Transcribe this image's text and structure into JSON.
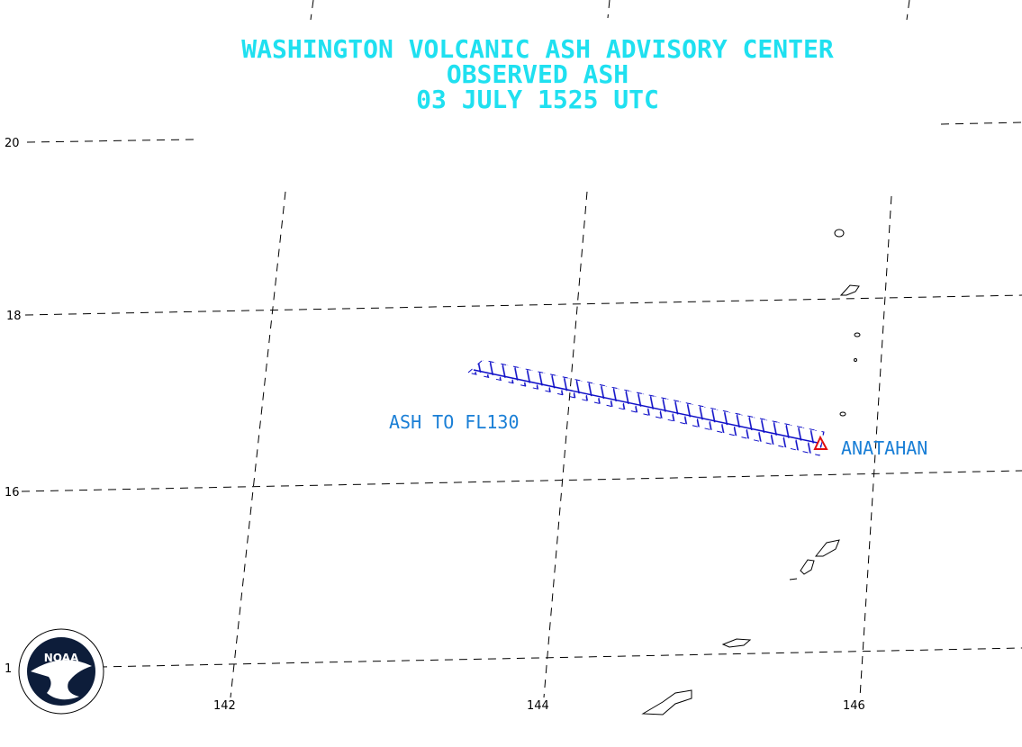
{
  "title": [
    "WASHINGTON VOLCANIC ASH ADVISORY CENTER",
    "OBSERVED ASH",
    "03 JULY 1525 UTC"
  ],
  "annotations": {
    "ash": "ASH TO FL130",
    "volcano": "ANATAHAN"
  },
  "latitude_labels": [
    "20",
    "18",
    "16",
    "1"
  ],
  "longitude_labels": [
    "142",
    "144",
    "146"
  ],
  "logo": {
    "name": "NOAA"
  }
}
